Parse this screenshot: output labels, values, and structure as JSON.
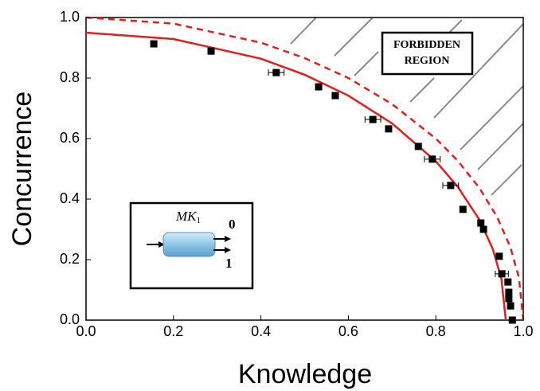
{
  "chart_data": {
    "type": "scatter",
    "x_label": "Knowledge",
    "y_label": "Concurrence",
    "xlim": [
      0,
      1
    ],
    "ylim": [
      0,
      1
    ],
    "xticks": [
      {
        "value": 0,
        "label": "0.0"
      },
      0.2,
      0.4,
      0.6,
      0.8,
      {
        "value": 1,
        "label": "1.0"
      }
    ],
    "yticks": [
      {
        "value": 0,
        "label": "0.0"
      },
      0.2,
      0.4,
      0.6,
      0.8,
      {
        "value": 1,
        "label": "1.0"
      }
    ],
    "points": {
      "color": "#000000",
      "x": [
        0.155,
        0.286,
        0.435,
        0.532,
        0.57,
        0.656,
        0.692,
        0.76,
        0.792,
        0.834,
        0.862,
        0.903,
        0.909,
        0.945,
        0.951,
        0.965,
        0.967,
        0.967,
        0.971,
        0.975
      ],
      "y": [
        0.913,
        0.889,
        0.818,
        0.771,
        0.742,
        0.663,
        0.632,
        0.574,
        0.532,
        0.445,
        0.366,
        0.321,
        0.3,
        0.211,
        0.153,
        0.126,
        0.092,
        0.071,
        0.047,
        0
      ],
      "xerr": [
        null,
        null,
        0.018,
        null,
        null,
        0.018,
        null,
        null,
        0.018,
        0.018,
        null,
        null,
        null,
        null,
        0.015,
        null,
        null,
        null,
        null,
        null
      ]
    },
    "curves": [
      {
        "style": "dashed",
        "color": "#e0201c",
        "x": [
          0,
          0.2,
          0.4,
          0.5,
          0.6,
          0.7,
          0.8,
          0.85,
          0.9,
          0.94,
          0.97,
          0.99,
          1
        ],
        "y": [
          1,
          0.98,
          0.917,
          0.866,
          0.8,
          0.714,
          0.6,
          0.527,
          0.436,
          0.341,
          0.243,
          0.141,
          0
        ]
      },
      {
        "style": "solid",
        "color": "#e0201c",
        "x": [
          0,
          0.2,
          0.4,
          0.5,
          0.6,
          0.7,
          0.8,
          0.85,
          0.9,
          0.93,
          0.95,
          0.96
        ],
        "y": [
          0.95,
          0.929,
          0.864,
          0.811,
          0.742,
          0.65,
          0.525,
          0.441,
          0.331,
          0.236,
          0.137,
          0
        ]
      }
    ],
    "region_label": [
      "FORBIDDEN",
      "REGION"
    ],
    "inset": {
      "label": "MK",
      "subscript": "1",
      "outputs": [
        "0",
        "1"
      ]
    }
  }
}
